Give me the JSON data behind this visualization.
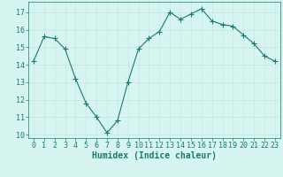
{
  "x": [
    0,
    1,
    2,
    3,
    4,
    5,
    6,
    7,
    8,
    9,
    10,
    11,
    12,
    13,
    14,
    15,
    16,
    17,
    18,
    19,
    20,
    21,
    22,
    23
  ],
  "y": [
    14.2,
    15.6,
    15.5,
    14.9,
    13.2,
    11.8,
    11.0,
    10.1,
    10.8,
    13.0,
    14.9,
    15.5,
    15.9,
    17.0,
    16.6,
    16.9,
    17.2,
    16.5,
    16.3,
    16.2,
    15.7,
    15.2,
    14.5,
    14.2
  ],
  "line_color": "#1a7a6e",
  "marker": "+",
  "marker_size": 4,
  "bg_color": "#d6f5f0",
  "grid_color": "#c4e8e2",
  "xlabel": "Humidex (Indice chaleur)",
  "ylim": [
    9.8,
    17.6
  ],
  "xlim": [
    -0.5,
    23.5
  ],
  "yticks": [
    10,
    11,
    12,
    13,
    14,
    15,
    16,
    17
  ],
  "xticks": [
    0,
    1,
    2,
    3,
    4,
    5,
    6,
    7,
    8,
    9,
    10,
    11,
    12,
    13,
    14,
    15,
    16,
    17,
    18,
    19,
    20,
    21,
    22,
    23
  ],
  "xlabel_fontsize": 7,
  "tick_fontsize": 6
}
